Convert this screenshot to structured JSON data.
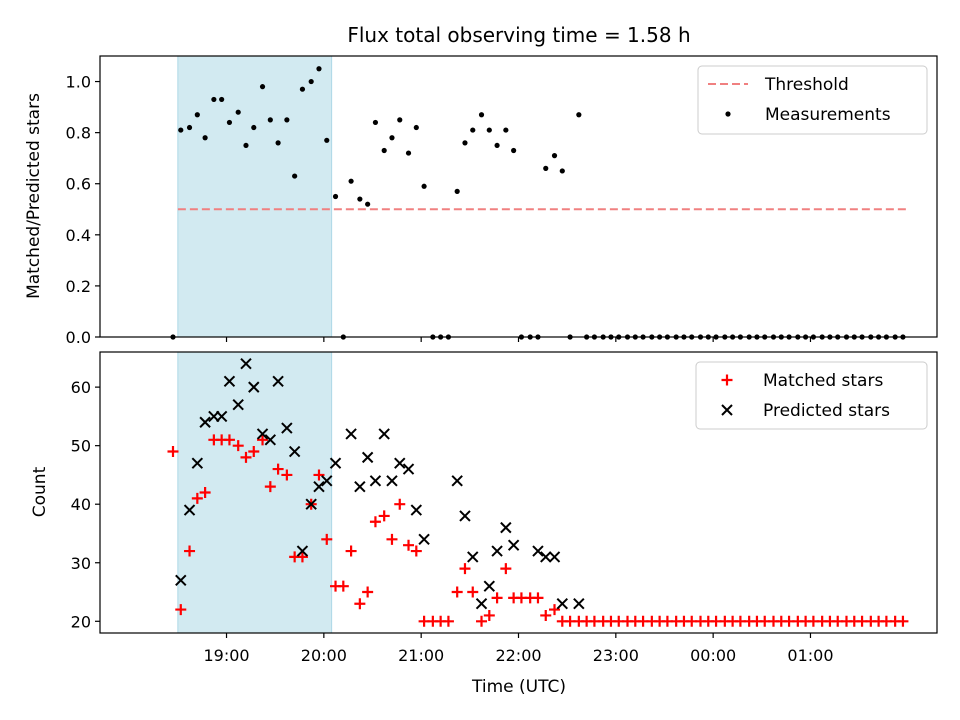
{
  "chart_data": [
    {
      "type": "scatter",
      "title": "Flux total observing time = 1.58 h",
      "ylabel": "Matched/Predicted stars",
      "xlabel": "",
      "ylim": [
        0,
        1.1
      ],
      "yticks": [
        "0.0",
        "0.2",
        "0.4",
        "0.6",
        "0.8",
        "1.0"
      ],
      "ytick_values": [
        0,
        0.2,
        0.4,
        0.6,
        0.8,
        1.0
      ],
      "shaded_interval_hours": [
        18.5,
        20.08
      ],
      "shade_color": "#add8e6",
      "threshold": {
        "name": "Threshold",
        "value": 0.5,
        "x_range": [
          18.5,
          26.0
        ],
        "color": "#f08080"
      },
      "legend": [
        "Threshold",
        "Measurements"
      ],
      "legend_position": "top-right",
      "series": [
        {
          "name": "Measurements",
          "color": "#000000",
          "x": [
            18.45,
            18.53,
            18.62,
            18.7,
            18.78,
            18.87,
            18.95,
            19.03,
            19.12,
            19.2,
            19.28,
            19.37,
            19.45,
            19.53,
            19.62,
            19.7,
            19.78,
            19.87,
            19.95,
            20.03,
            20.12,
            20.2,
            20.28,
            20.37,
            20.45,
            20.53,
            20.62,
            20.7,
            20.78,
            20.87,
            20.95,
            21.03,
            21.12,
            21.2,
            21.28,
            21.37,
            21.45,
            21.53,
            21.62,
            21.7,
            21.78,
            21.87,
            21.95,
            22.03,
            22.12,
            22.2,
            22.28,
            22.37,
            22.45,
            22.53,
            22.62,
            22.7,
            22.78,
            22.87,
            22.95,
            23.03,
            23.12,
            23.2,
            23.28,
            23.37,
            23.45,
            23.53,
            23.62,
            23.7,
            23.78,
            23.87,
            23.95,
            24.03,
            24.12,
            24.2,
            24.28,
            24.37,
            24.45,
            24.53,
            24.62,
            24.7,
            24.78,
            24.87,
            24.95,
            25.03,
            25.12,
            25.2,
            25.28,
            25.37,
            25.45,
            25.53,
            25.62,
            25.7,
            25.78,
            25.87,
            25.95
          ],
          "y": [
            0.0,
            0.81,
            0.82,
            0.87,
            0.78,
            0.93,
            0.93,
            0.84,
            0.88,
            0.75,
            0.82,
            0.98,
            0.85,
            0.76,
            0.85,
            0.63,
            0.97,
            1.0,
            1.05,
            0.77,
            0.55,
            0.0,
            0.61,
            0.54,
            0.52,
            0.84,
            0.73,
            0.78,
            0.85,
            0.72,
            0.82,
            0.59,
            0.0,
            0.0,
            0.0,
            0.57,
            0.76,
            0.81,
            0.87,
            0.81,
            0.75,
            0.81,
            0.73,
            0.0,
            0.0,
            0.0,
            0.66,
            0.71,
            0.65,
            0.0,
            0.87,
            0.0,
            0.0,
            0.0,
            0.0,
            0.0,
            0.0,
            0.0,
            0.0,
            0.0,
            0.0,
            0.0,
            0.0,
            0.0,
            0.0,
            0.0,
            0.0,
            0.0,
            0.0,
            0.0,
            0.0,
            0.0,
            0.0,
            0.0,
            0.0,
            0.0,
            0.0,
            0.0,
            0.0,
            0.0,
            0.0,
            0.0,
            0.0,
            0.0,
            0.0,
            0.0,
            0.0,
            0.0,
            0.0,
            0.0,
            0.0
          ]
        }
      ]
    },
    {
      "type": "scatter",
      "title": "",
      "ylabel": "Count",
      "xlabel": "Time (UTC)",
      "ylim": [
        18,
        66
      ],
      "yticks": [
        "20",
        "30",
        "40",
        "50",
        "60"
      ],
      "ytick_values": [
        20,
        30,
        40,
        50,
        60
      ],
      "xlim_hours": [
        17.7,
        26.3
      ],
      "xtick_values": [
        19,
        20,
        21,
        22,
        23,
        24,
        25
      ],
      "xticks": [
        "19:00",
        "20:00",
        "21:00",
        "22:00",
        "23:00",
        "00:00",
        "01:00"
      ],
      "shaded_interval_hours": [
        18.5,
        20.08
      ],
      "shade_color": "#add8e6",
      "legend": [
        "Matched stars",
        "Predicted stars"
      ],
      "legend_position": "top-right",
      "series": [
        {
          "name": "Matched stars",
          "marker": "plus",
          "color": "#ff0000",
          "x": [
            18.45,
            18.53,
            18.62,
            18.7,
            18.78,
            18.87,
            18.95,
            19.03,
            19.12,
            19.2,
            19.28,
            19.37,
            19.45,
            19.53,
            19.62,
            19.7,
            19.78,
            19.87,
            19.95,
            20.03,
            20.12,
            20.2,
            20.28,
            20.37,
            20.45,
            20.53,
            20.62,
            20.7,
            20.78,
            20.87,
            20.95,
            21.03,
            21.12,
            21.2,
            21.28,
            21.37,
            21.45,
            21.53,
            21.62,
            21.7,
            21.78,
            21.87,
            21.95,
            22.03,
            22.12,
            22.2,
            22.28,
            22.37,
            22.45,
            22.53,
            22.62,
            22.7,
            22.78,
            22.87,
            22.95,
            23.03,
            23.12,
            23.2,
            23.28,
            23.37,
            23.45,
            23.53,
            23.62,
            23.7,
            23.78,
            23.87,
            23.95,
            24.03,
            24.12,
            24.2,
            24.28,
            24.37,
            24.45,
            24.53,
            24.62,
            24.7,
            24.78,
            24.87,
            24.95,
            25.03,
            25.12,
            25.2,
            25.28,
            25.37,
            25.45,
            25.53,
            25.62,
            25.7,
            25.78,
            25.87,
            25.95
          ],
          "y": [
            49,
            22,
            32,
            41,
            42,
            51,
            51,
            51,
            50,
            48,
            49,
            51,
            43,
            46,
            45,
            31,
            31,
            40,
            45,
            34,
            26,
            26,
            32,
            23,
            25,
            37,
            38,
            34,
            40,
            33,
            32,
            20,
            20,
            20,
            20,
            25,
            29,
            25,
            20,
            21,
            24,
            29,
            24,
            24,
            24,
            24,
            21,
            22,
            20,
            20,
            20,
            20,
            20,
            20,
            20,
            20,
            20,
            20,
            20,
            20,
            20,
            20,
            20,
            20,
            20,
            20,
            20,
            20,
            20,
            20,
            20,
            20,
            20,
            20,
            20,
            20,
            20,
            20,
            20,
            20,
            20,
            20,
            20,
            20,
            20,
            20,
            20,
            20,
            20,
            20,
            20
          ]
        },
        {
          "name": "Predicted stars",
          "marker": "x",
          "color": "#000000",
          "x": [
            18.53,
            18.62,
            18.7,
            18.78,
            18.87,
            18.95,
            19.03,
            19.12,
            19.2,
            19.28,
            19.37,
            19.45,
            19.53,
            19.62,
            19.7,
            19.78,
            19.87,
            19.95,
            20.03,
            20.12,
            20.28,
            20.37,
            20.45,
            20.53,
            20.62,
            20.7,
            20.78,
            20.87,
            20.95,
            21.03,
            21.37,
            21.45,
            21.53,
            21.62,
            21.7,
            21.78,
            21.87,
            21.95,
            22.2,
            22.28,
            22.37,
            22.45,
            22.62
          ],
          "y": [
            27,
            39,
            47,
            54,
            55,
            55,
            61,
            57,
            64,
            60,
            52,
            51,
            61,
            53,
            49,
            32,
            40,
            43,
            44,
            47,
            52,
            43,
            48,
            44,
            52,
            44,
            47,
            46,
            39,
            34,
            44,
            38,
            31,
            23,
            26,
            32,
            36,
            33,
            32,
            31,
            31,
            23,
            23
          ]
        }
      ]
    }
  ]
}
